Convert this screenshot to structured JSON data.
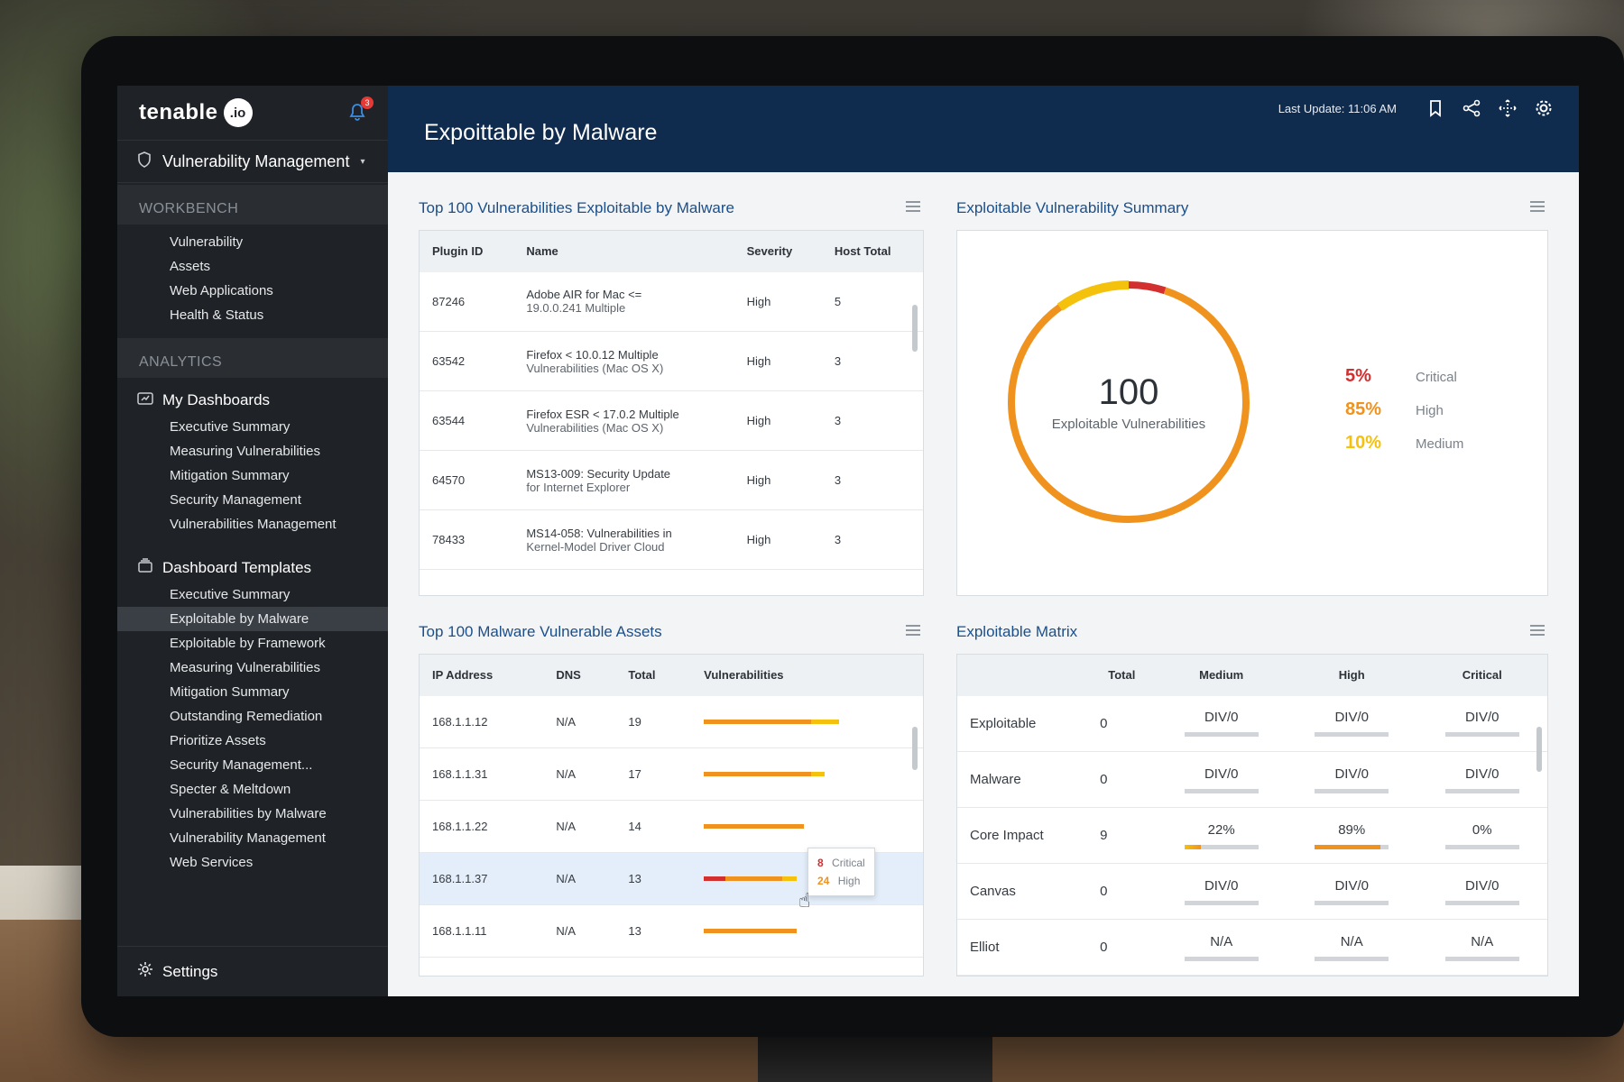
{
  "colors": {
    "brand_navy": "#0f2b4e",
    "sidebar": "#1f2226",
    "critical": "#d32f2f",
    "high": "#f0931e",
    "medium": "#f4c20d",
    "title_blue": "#1b4f8a"
  },
  "brand": {
    "logo_text": "tenable",
    "logo_badge": ".io",
    "notification_count": "3"
  },
  "sidebar": {
    "module": "Vulnerability Management",
    "workbench_label": "WORKBENCH",
    "workbench_items": [
      "Vulnerability",
      "Assets",
      "Web Applications",
      "Health & Status"
    ],
    "analytics_label": "ANALYTICS",
    "my_dashboards_label": "My Dashboards",
    "my_dashboards_items": [
      "Executive Summary",
      "Measuring Vulnerabilities",
      "Mitigation Summary",
      "Security Management",
      "Vulnerabilities Management"
    ],
    "templates_label": "Dashboard Templates",
    "templates_items": [
      "Executive Summary",
      "Exploitable by Malware",
      "Exploitable by Framework",
      "Measuring Vulnerabilities",
      "Mitigation Summary",
      "Outstanding Remediation",
      "Prioritize Assets",
      "Security Management...",
      "Specter & Meltdown",
      "Vulnerabilities by Malware",
      "Vulnerability Management",
      "Web Services"
    ],
    "active_template": "Exploitable by Malware",
    "settings_label": "Settings"
  },
  "header": {
    "title": "Expoittable by Malware",
    "last_update": "Last Update: 11:06 AM"
  },
  "vuln_panel": {
    "title": "Top 100 Vulnerabilities Exploitable by Malware",
    "columns": [
      "Plugin ID",
      "Name",
      "Severity",
      "Host Total"
    ],
    "rows": [
      {
        "id": "87246",
        "name1": "Adobe AIR for Mac <=",
        "name2": "19.0.0.241 Multiple",
        "severity": "High",
        "hosts": "5"
      },
      {
        "id": "63542",
        "name1": "Firefox < 10.0.12 Multiple",
        "name2": "Vulnerabilities (Mac OS X)",
        "severity": "High",
        "hosts": "3"
      },
      {
        "id": "63544",
        "name1": "Firefox ESR < 17.0.2 Multiple",
        "name2": "Vulnerabilities (Mac OS X)",
        "severity": "High",
        "hosts": "3"
      },
      {
        "id": "64570",
        "name1": "MS13-009: Security Update",
        "name2": "for Internet Explorer",
        "severity": "High",
        "hosts": "3"
      },
      {
        "id": "78433",
        "name1": "MS14-058: Vulnerabilities in",
        "name2": "Kernel-Model Driver Cloud",
        "severity": "High",
        "hosts": "3"
      }
    ]
  },
  "summary_panel": {
    "title": "Exploitable Vulnerability Summary",
    "total": "100",
    "total_label": "Exploitable Vulnerabilities",
    "slices": [
      {
        "pct": "5%",
        "label": "Critical",
        "value": 5
      },
      {
        "pct": "85%",
        "label": "High",
        "value": 85
      },
      {
        "pct": "10%",
        "label": "Medium",
        "value": 10
      }
    ]
  },
  "assets_panel": {
    "title": "Top 100 Malware Vulnerable Assets",
    "columns": [
      "IP Address",
      "DNS",
      "Total",
      "Vulnerabilities"
    ],
    "rows": [
      {
        "ip": "168.1.1.12",
        "dns": "N/A",
        "total": "19",
        "critical": 0,
        "high": 15,
        "medium": 4
      },
      {
        "ip": "168.1.1.31",
        "dns": "N/A",
        "total": "17",
        "critical": 0,
        "high": 15,
        "medium": 2
      },
      {
        "ip": "168.1.1.22",
        "dns": "N/A",
        "total": "14",
        "critical": 0,
        "high": 14,
        "medium": 0
      },
      {
        "ip": "168.1.1.37",
        "dns": "N/A",
        "total": "13",
        "critical": 3,
        "high": 8,
        "medium": 2
      },
      {
        "ip": "168.1.1.11",
        "dns": "N/A",
        "total": "13",
        "critical": 0,
        "high": 13,
        "medium": 0
      }
    ],
    "tooltip": {
      "critical_count": "8",
      "critical_label": "Critical",
      "high_count": "24",
      "high_label": "High"
    }
  },
  "matrix_panel": {
    "title": "Exploitable Matrix",
    "columns": [
      "",
      "Total",
      "Medium",
      "High",
      "Critical"
    ],
    "rows": [
      {
        "label": "Exploitable",
        "total": "0",
        "medium": "DIV/0",
        "high": "DIV/0",
        "critical": "DIV/0",
        "medium_fill": 0,
        "high_fill": 0,
        "critical_fill": 0
      },
      {
        "label": "Malware",
        "total": "0",
        "medium": "DIV/0",
        "high": "DIV/0",
        "critical": "DIV/0",
        "medium_fill": 0,
        "high_fill": 0,
        "critical_fill": 0
      },
      {
        "label": "Core Impact",
        "total": "9",
        "medium": "22%",
        "high": "89%",
        "critical": "0%",
        "medium_fill": 0.22,
        "high_fill": 0.89,
        "critical_fill": 0
      },
      {
        "label": "Canvas",
        "total": "0",
        "medium": "DIV/0",
        "high": "DIV/0",
        "critical": "DIV/0",
        "medium_fill": 0,
        "high_fill": 0,
        "critical_fill": 0
      },
      {
        "label": "Elliot",
        "total": "0",
        "medium": "N/A",
        "high": "N/A",
        "critical": "N/A",
        "medium_fill": 0,
        "high_fill": 0,
        "critical_fill": 0
      }
    ]
  }
}
